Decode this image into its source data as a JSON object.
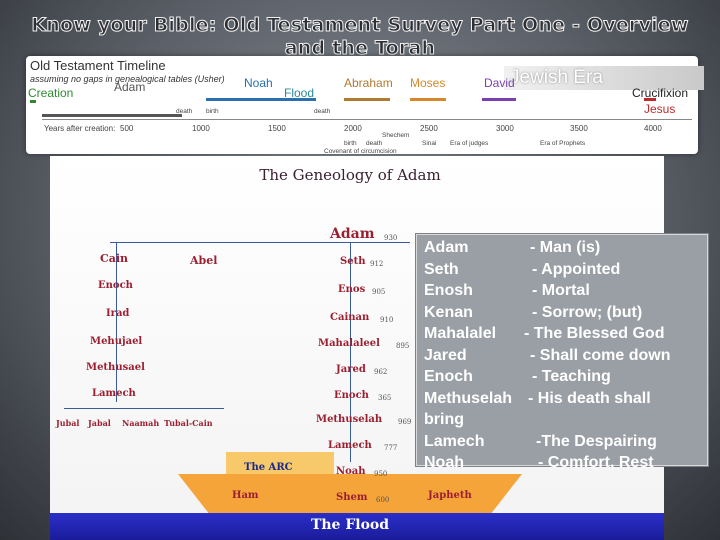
{
  "title": "Know your Bible: Old Testament Survey Part One - Overview and the Torah",
  "timeline": {
    "heading": "Old Testament Timeline",
    "subheading": "assuming no gaps in genealogical tables (Usher)",
    "era": "Jewish Era",
    "labels": [
      "Creation",
      "Adam",
      "Noah",
      "Flood",
      "Abraham",
      "Moses",
      "David",
      "Crucifixion",
      "Jesus"
    ],
    "axis_label": "Years after creation:",
    "years": [
      "500",
      "1000",
      "1500",
      "2000",
      "2500",
      "3000",
      "3500",
      "4000"
    ],
    "small_labels": [
      "death",
      "birth",
      "death",
      "birth",
      "death",
      "Shechem",
      "Sinai",
      "Era of judges",
      "Era of Prophets",
      "Covenant of circumcision"
    ],
    "colors": {
      "creation": "#2f8a2f",
      "adam": "#555555",
      "noah": "#2a6fb0",
      "flood": "#2a8a9a",
      "abraham": "#b07a30",
      "moses": "#d8862a",
      "david": "#7a3fb0",
      "jesus": "#c0282a"
    }
  },
  "genealogy": {
    "title": "The Geneology of Adam",
    "adam": {
      "name": "Adam",
      "age": "930"
    },
    "left_line": [
      "Cain",
      "Enoch",
      "Irad",
      "Mehujael",
      "Methusael",
      "Lamech"
    ],
    "abel": "Abel",
    "lamech_children": [
      "Jubal",
      "Jabal",
      "Naamah",
      "Tubal-Cain"
    ],
    "seth_line": [
      {
        "name": "Seth",
        "age": "912"
      },
      {
        "name": "Enos",
        "age": "905"
      },
      {
        "name": "Cainan",
        "age": "910"
      },
      {
        "name": "Mahalaleel",
        "age": "895"
      },
      {
        "name": "Jared",
        "age": "962"
      },
      {
        "name": "Enoch",
        "age": "365"
      },
      {
        "name": "Methuselah",
        "age": "969"
      },
      {
        "name": "Lamech",
        "age": "777"
      },
      {
        "name": "Noah",
        "age": "950"
      }
    ],
    "ark_label": "The ARC",
    "sons": [
      {
        "name": "Ham"
      },
      {
        "name": "Shem",
        "age": "600"
      },
      {
        "name": "Japheth"
      }
    ],
    "flood": "The Flood"
  },
  "meanings": [
    {
      "name": "Adam",
      "meaning": "- Man (is)"
    },
    {
      "name": "Seth",
      "meaning": "- Appointed"
    },
    {
      "name": "Enosh",
      "meaning": "- Mortal"
    },
    {
      "name": "Kenan",
      "meaning": "- Sorrow; (but)"
    },
    {
      "name": "Mahalalel",
      "meaning": "- The Blessed God"
    },
    {
      "name": "Jared",
      "meaning": "- Shall come down"
    },
    {
      "name": "Enoch",
      "meaning": "- Teaching"
    },
    {
      "name": "Methuselah",
      "meaning": "- His death shall"
    },
    {
      "name": "",
      "meaning": "bring"
    },
    {
      "name": "Lamech",
      "meaning": "-The Despairing"
    },
    {
      "name": "Noah",
      "meaning": "- Comfort, Rest"
    }
  ]
}
